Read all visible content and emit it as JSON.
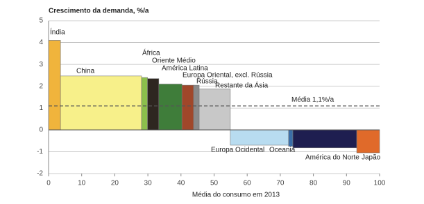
{
  "chart_data": {
    "type": "bar",
    "title": "Crescimento da demanda, %/a",
    "x_label": "Média do consumo em 2013",
    "categories": [
      "Índia",
      "China",
      "África",
      "Oriente Médio",
      "América Latina",
      "Europa Oriental, excl. Rússia",
      "Rússia",
      "Restante da Ásia",
      "Europa Ocidental",
      "Oceania",
      "América do Norte",
      "Japão"
    ],
    "bins": [
      0,
      3.6,
      28.1,
      29.9,
      33.3,
      40.3,
      43.8,
      45.5,
      54.9,
      72.5,
      73.8,
      93.1,
      100
    ],
    "values": [
      4.1,
      2.47,
      2.4,
      2.35,
      2.1,
      2.05,
      2.05,
      1.87,
      -0.7,
      -0.75,
      -0.82,
      -1.05
    ],
    "colors": [
      "#f0b43c",
      "#f7f08a",
      "#8cc04c",
      "#2e2620",
      "#3f7d3a",
      "#a0472a",
      "#8a8a8a",
      "#c8c8c8",
      "#b8dcf0",
      "#3a6ea8",
      "#1e1e50",
      "#e06a2a"
    ],
    "reference_line": {
      "value": 1.1,
      "label": "Média 1,1%/a"
    },
    "xlim": [
      0,
      100
    ],
    "xticks": [
      0,
      10,
      20,
      30,
      40,
      50,
      60,
      70,
      80,
      90,
      100
    ],
    "ylim": [
      -2,
      5
    ],
    "yticks": [
      -2,
      -1,
      0,
      1,
      2,
      3,
      4,
      5
    ],
    "grid": true
  }
}
